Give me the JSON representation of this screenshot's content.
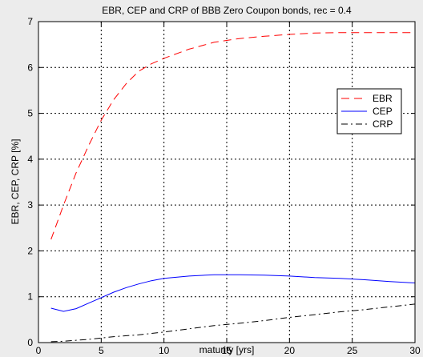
{
  "chart_data": {
    "type": "line",
    "title": "EBR, CEP and CRP of BBB Zero Coupon bonds, rec = 0.4",
    "xlabel": "maturity [yrs]",
    "ylabel": "EBR, CEP, CRP [%]",
    "xlim": [
      0,
      30
    ],
    "ylim": [
      0,
      7
    ],
    "xticks": [
      0,
      5,
      10,
      15,
      20,
      25,
      30
    ],
    "yticks": [
      0,
      1,
      2,
      3,
      4,
      5,
      6,
      7
    ],
    "grid": true,
    "legend_position": "right",
    "series": [
      {
        "name": "EBR",
        "color": "#ff0000",
        "dash": "long-dash",
        "x": [
          1,
          2,
          3,
          4,
          5,
          6,
          7,
          8,
          9,
          10,
          12,
          14,
          16,
          18,
          20,
          22,
          24,
          26,
          28,
          30
        ],
        "y": [
          2.25,
          3.0,
          3.7,
          4.3,
          4.85,
          5.3,
          5.65,
          5.92,
          6.08,
          6.2,
          6.4,
          6.55,
          6.63,
          6.68,
          6.72,
          6.75,
          6.76,
          6.76,
          6.76,
          6.76
        ]
      },
      {
        "name": "CEP",
        "color": "#0000ff",
        "dash": "solid",
        "x": [
          1,
          2,
          3,
          4,
          5,
          6,
          7,
          8,
          9,
          10,
          12,
          14,
          16,
          18,
          20,
          22,
          24,
          26,
          28,
          30
        ],
        "y": [
          0.75,
          0.68,
          0.74,
          0.86,
          0.98,
          1.1,
          1.2,
          1.28,
          1.35,
          1.4,
          1.45,
          1.48,
          1.48,
          1.47,
          1.45,
          1.42,
          1.4,
          1.37,
          1.33,
          1.3
        ]
      },
      {
        "name": "CRP",
        "color": "#000000",
        "dash": "dash-dot",
        "x": [
          1,
          2,
          3,
          4,
          5,
          6,
          8,
          10,
          12,
          14,
          16,
          18,
          20,
          22,
          24,
          26,
          28,
          30
        ],
        "y": [
          0.02,
          0.03,
          0.05,
          0.07,
          0.1,
          0.13,
          0.17,
          0.23,
          0.3,
          0.37,
          0.42,
          0.48,
          0.55,
          0.61,
          0.67,
          0.72,
          0.78,
          0.84
        ]
      }
    ]
  }
}
